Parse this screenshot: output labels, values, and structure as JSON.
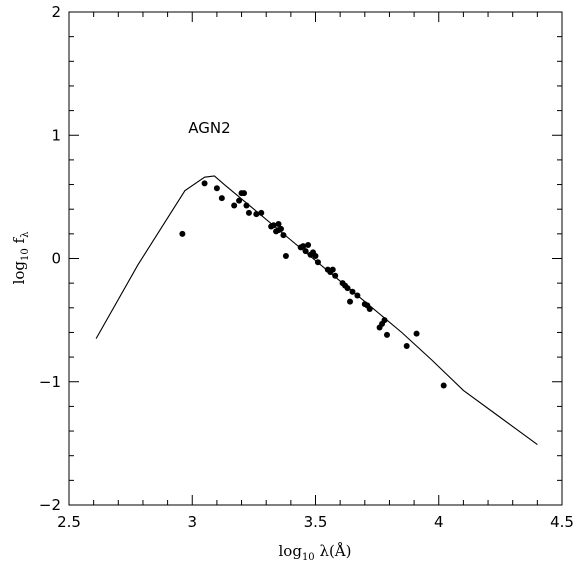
{
  "chart_data": {
    "type": "scatter",
    "title": "",
    "xlabel": "log",
    "xlabel_sub": "10",
    "xlabel_tail": "λ(Å)",
    "ylabel": "log",
    "ylabel_sub": "10",
    "ylabel_tail": "f",
    "ylabel_tail_sub": "λ",
    "xlim": [
      2.5,
      4.5
    ],
    "ylim": [
      -2,
      2
    ],
    "x_ticks": [
      2.5,
      3,
      3.5,
      4,
      4.5
    ],
    "x_tick_labels": [
      "2.5",
      "3",
      "3.5",
      "4",
      "4.5"
    ],
    "y_ticks": [
      -2,
      -1,
      0,
      1,
      2
    ],
    "y_tick_labels": [
      "−2",
      "−1",
      "0",
      "1",
      "2"
    ],
    "grid": false,
    "annotations": [
      {
        "text": "AGN2",
        "x": 3.07,
        "y": 1.02
      }
    ],
    "series": [
      {
        "kind": "line",
        "x": [
          2.61,
          2.78,
          2.97,
          3.05,
          3.09,
          3.13,
          3.25,
          3.4,
          3.55,
          3.7,
          3.85,
          3.97,
          4.1,
          4.25,
          4.4
        ],
        "y": [
          -0.65,
          -0.05,
          0.55,
          0.66,
          0.67,
          0.6,
          0.4,
          0.15,
          -0.1,
          -0.35,
          -0.6,
          -0.82,
          -1.07,
          -1.29,
          -1.51
        ]
      },
      {
        "kind": "points",
        "x": [
          2.96,
          3.05,
          3.1,
          3.12,
          3.17,
          3.19,
          3.2,
          3.21,
          3.22,
          3.23,
          3.26,
          3.28,
          3.32,
          3.33,
          3.34,
          3.35,
          3.35,
          3.36,
          3.37,
          3.38,
          3.44,
          3.45,
          3.46,
          3.47,
          3.48,
          3.49,
          3.5,
          3.51,
          3.55,
          3.56,
          3.57,
          3.58,
          3.61,
          3.62,
          3.63,
          3.64,
          3.65,
          3.67,
          3.7,
          3.71,
          3.72,
          3.76,
          3.77,
          3.78,
          3.79,
          3.87,
          3.91,
          4.02
        ],
        "y": [
          0.2,
          0.61,
          0.57,
          0.49,
          0.43,
          0.47,
          0.53,
          0.53,
          0.43,
          0.37,
          0.36,
          0.37,
          0.26,
          0.27,
          0.22,
          0.28,
          0.23,
          0.24,
          0.19,
          0.02,
          0.09,
          0.1,
          0.06,
          0.11,
          0.03,
          0.05,
          0.02,
          -0.03,
          -0.09,
          -0.11,
          -0.09,
          -0.14,
          -0.2,
          -0.22,
          -0.24,
          -0.35,
          -0.27,
          -0.3,
          -0.37,
          -0.38,
          -0.41,
          -0.56,
          -0.53,
          -0.5,
          -0.62,
          -0.71,
          -0.61,
          -1.03
        ]
      }
    ]
  }
}
